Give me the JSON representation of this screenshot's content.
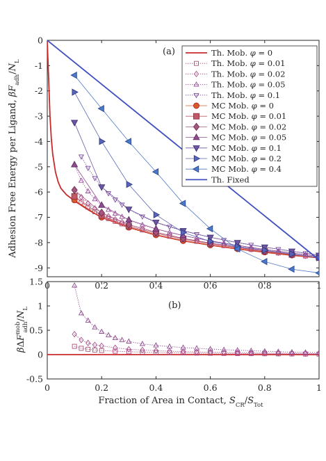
{
  "chart_data": [
    {
      "type": "line",
      "panel": "(a)",
      "ylabel": "Adhesion Free Energy per Ligand, βF_adh/N_L",
      "xlabel": "",
      "xlim": [
        0,
        1
      ],
      "ylim": [
        -9.35,
        0
      ],
      "xticks": [
        "0",
        "0.2",
        "0.4",
        "0.6",
        "0.8",
        "1"
      ],
      "yticks": [
        "0",
        "-1",
        "-2",
        "-3",
        "-4",
        "-5",
        "-6",
        "-7",
        "-8",
        "-9"
      ],
      "legend_position": "top-right",
      "legend": [
        "Th. Mob. φ = 0",
        "Th. Mob. φ = 0.01",
        "Th. Mob. φ = 0.02",
        "Th. Mob. φ = 0.05",
        "Th. Mob. φ = 0.1",
        "MC Mob. φ = 0",
        "MC Mob. φ = 0.01",
        "MC Mob. φ = 0.02",
        "MC Mob. φ = 0.05",
        "MC Mob. φ = 0.1",
        "MC Mob. φ = 0.2",
        "MC Mob. φ = 0.4",
        "Th. Fixed"
      ],
      "series": [
        {
          "name": "Th. Mob. φ = 0",
          "kind": "line",
          "color": "#c8292b",
          "x": [
            0.0,
            0.005,
            0.01,
            0.015,
            0.02,
            0.03,
            0.04,
            0.05,
            0.07,
            0.1,
            0.15,
            0.2,
            0.3,
            0.4,
            0.5,
            0.6,
            0.7,
            0.8,
            0.9,
            1.0
          ],
          "y": [
            -0.05,
            -1.5,
            -3.0,
            -3.9,
            -4.5,
            -5.2,
            -5.6,
            -5.85,
            -6.1,
            -6.35,
            -6.7,
            -7.0,
            -7.4,
            -7.7,
            -7.93,
            -8.1,
            -8.25,
            -8.38,
            -8.5,
            -8.6
          ]
        },
        {
          "name": "Th. Mob. φ = 0.01",
          "kind": "dotted",
          "marker": "square",
          "color": "#b04a7a",
          "x": [
            0.1,
            0.125,
            0.15,
            0.175,
            0.2,
            0.225,
            0.25,
            0.275,
            0.3,
            0.35,
            0.4,
            0.45,
            0.5,
            0.55,
            0.6,
            0.65,
            0.7,
            0.75,
            0.8,
            0.85,
            0.9,
            0.95,
            1.0
          ],
          "y": [
            -6.17,
            -6.4,
            -6.6,
            -6.78,
            -6.93,
            -7.05,
            -7.16,
            -7.26,
            -7.35,
            -7.5,
            -7.63,
            -7.75,
            -7.86,
            -7.95,
            -8.04,
            -8.12,
            -8.2,
            -8.27,
            -8.34,
            -8.41,
            -8.47,
            -8.53,
            -8.59
          ]
        },
        {
          "name": "Th. Mob. φ = 0.02",
          "kind": "dotted",
          "marker": "diamond",
          "color": "#a64d8c",
          "x": [
            0.1,
            0.125,
            0.15,
            0.175,
            0.2,
            0.225,
            0.25,
            0.275,
            0.3,
            0.35,
            0.4,
            0.45,
            0.5,
            0.55,
            0.6,
            0.65,
            0.7,
            0.75,
            0.8,
            0.85,
            0.9,
            0.95,
            1.0
          ],
          "y": [
            -5.92,
            -6.2,
            -6.45,
            -6.65,
            -6.82,
            -6.96,
            -7.08,
            -7.19,
            -7.29,
            -7.45,
            -7.59,
            -7.72,
            -7.83,
            -7.93,
            -8.02,
            -8.1,
            -8.18,
            -8.26,
            -8.33,
            -8.4,
            -8.46,
            -8.52,
            -8.58
          ]
        },
        {
          "name": "Th. Mob. φ = 0.05",
          "kind": "dotted",
          "marker": "triangle-up",
          "color": "#9a4d9a",
          "x": [
            0.1,
            0.125,
            0.15,
            0.175,
            0.2,
            0.225,
            0.25,
            0.275,
            0.3,
            0.35,
            0.4,
            0.45,
            0.5,
            0.55,
            0.6,
            0.65,
            0.7,
            0.75,
            0.8,
            0.85,
            0.9,
            0.95,
            1.0
          ],
          "y": [
            -4.92,
            -5.55,
            -5.97,
            -6.28,
            -6.52,
            -6.7,
            -6.85,
            -6.98,
            -7.1,
            -7.3,
            -7.46,
            -7.6,
            -7.72,
            -7.83,
            -7.93,
            -8.02,
            -8.11,
            -8.19,
            -8.27,
            -8.34,
            -8.41,
            -8.48,
            -8.55
          ]
        },
        {
          "name": "Th. Mob. φ = 0.1",
          "kind": "dotted",
          "marker": "triangle-down",
          "color": "#7a4a9e",
          "x": [
            0.125,
            0.15,
            0.175,
            0.2,
            0.225,
            0.25,
            0.275,
            0.3,
            0.35,
            0.4,
            0.45,
            0.5,
            0.55,
            0.6,
            0.65,
            0.7,
            0.75,
            0.8,
            0.85,
            0.9,
            0.95,
            1.0
          ],
          "y": [
            -4.6,
            -5.05,
            -5.45,
            -5.8,
            -6.05,
            -6.3,
            -6.5,
            -6.68,
            -6.97,
            -7.2,
            -7.38,
            -7.53,
            -7.67,
            -7.79,
            -7.9,
            -8.0,
            -8.09,
            -8.18,
            -8.26,
            -8.34,
            -8.42,
            -8.5
          ]
        },
        {
          "name": "MC Mob. φ = 0",
          "kind": "markers",
          "marker": "circle",
          "color": "#d9592e",
          "edge": "#b02a22",
          "x": [
            0.1,
            0.2,
            0.3,
            0.4,
            0.5,
            0.6,
            0.7,
            0.8,
            0.9,
            1.0
          ],
          "y": [
            -6.32,
            -7.0,
            -7.4,
            -7.7,
            -7.93,
            -8.1,
            -8.25,
            -8.38,
            -8.5,
            -8.6
          ]
        },
        {
          "name": "MC Mob. φ = 0.01",
          "kind": "markers",
          "marker": "square",
          "color": "#c05a66",
          "edge": "#8c2f44",
          "x": [
            0.1,
            0.2,
            0.3,
            0.4,
            0.5,
            0.6,
            0.7,
            0.8,
            0.9,
            1.0
          ],
          "y": [
            -6.17,
            -6.93,
            -7.35,
            -7.63,
            -7.86,
            -8.04,
            -8.2,
            -8.34,
            -8.47,
            -8.59
          ]
        },
        {
          "name": "MC Mob. φ = 0.02",
          "kind": "markers",
          "marker": "diamond",
          "color": "#a7577e",
          "edge": "#6e2f57",
          "x": [
            0.1,
            0.2,
            0.3,
            0.4,
            0.5,
            0.6,
            0.7,
            0.8,
            0.9,
            1.0
          ],
          "y": [
            -5.92,
            -6.82,
            -7.29,
            -7.59,
            -7.83,
            -8.02,
            -8.18,
            -8.33,
            -8.46,
            -8.58
          ]
        },
        {
          "name": "MC Mob. φ = 0.05",
          "kind": "markers",
          "marker": "triangle-up",
          "color": "#8f4c8f",
          "edge": "#5e2d66",
          "x": [
            0.1,
            0.2,
            0.3,
            0.4,
            0.5,
            0.6,
            0.7,
            0.8,
            0.9,
            1.0
          ],
          "y": [
            -4.92,
            -6.52,
            -7.1,
            -7.46,
            -7.72,
            -7.93,
            -8.11,
            -8.27,
            -8.41,
            -8.55
          ]
        },
        {
          "name": "MC Mob. φ = 0.1",
          "kind": "markers",
          "marker": "triangle-down",
          "color": "#6e56a0",
          "edge": "#3f3077",
          "x": [
            0.1,
            0.2,
            0.3,
            0.4,
            0.5,
            0.6,
            0.7,
            0.8,
            0.9,
            1.0
          ],
          "y": [
            -3.25,
            -5.8,
            -6.68,
            -7.2,
            -7.53,
            -7.79,
            -8.0,
            -8.18,
            -8.34,
            -8.5
          ]
        },
        {
          "name": "MC Mob. φ = 0.2",
          "kind": "markers",
          "marker": "triangle-right",
          "color": "#5a64b8",
          "edge": "#323b86",
          "x": [
            0.1,
            0.2,
            0.3,
            0.4,
            0.5,
            0.6,
            0.7,
            0.8,
            0.9,
            1.0
          ],
          "y": [
            -2.05,
            -4.0,
            -5.7,
            -6.9,
            -7.6,
            -7.95,
            -8.15,
            -8.3,
            -8.45,
            -8.6
          ]
        },
        {
          "name": "MC Mob. φ = 0.4",
          "kind": "markers",
          "marker": "triangle-left",
          "color": "#4e79c8",
          "edge": "#2b4a96",
          "x": [
            0.1,
            0.2,
            0.3,
            0.4,
            0.5,
            0.6,
            0.7,
            0.8,
            0.9,
            1.0
          ],
          "y": [
            -1.38,
            -2.7,
            -4.0,
            -5.2,
            -6.45,
            -7.45,
            -8.25,
            -8.75,
            -9.05,
            -9.2
          ]
        },
        {
          "name": "Th. Fixed",
          "kind": "line",
          "color": "#3f4fbf",
          "x": [
            0.0,
            1.0
          ],
          "y": [
            0.0,
            -8.68
          ]
        }
      ]
    },
    {
      "type": "line",
      "panel": "(b)",
      "ylabel": "βΔF_adh^mob/N_L",
      "xlabel": "Fraction of Area in Contact, S_CR/S_Tot",
      "xlim": [
        0,
        1
      ],
      "ylim": [
        -0.5,
        1.5
      ],
      "xticks": [
        "0",
        "0.2",
        "0.4",
        "0.6",
        "0.8",
        "1"
      ],
      "yticks": [
        "1.5",
        "1",
        "0.5",
        "0",
        "-0.5"
      ],
      "series": [
        {
          "name": "φ = 0",
          "kind": "line",
          "color": "#c8292b",
          "x": [
            0.0,
            1.0
          ],
          "y": [
            0.0,
            0.0
          ]
        },
        {
          "name": "φ = 0.01",
          "kind": "dotted",
          "marker": "square",
          "color": "#b04a7a",
          "x": [
            0.1,
            0.125,
            0.15,
            0.175,
            0.2,
            0.25,
            0.3,
            0.35,
            0.4,
            0.45,
            0.5,
            0.55,
            0.6,
            0.65,
            0.7,
            0.75,
            0.8,
            0.85,
            0.9,
            0.95,
            1.0
          ],
          "y": [
            0.17,
            0.13,
            0.11,
            0.095,
            0.085,
            0.07,
            0.06,
            0.052,
            0.045,
            0.04,
            0.035,
            0.031,
            0.028,
            0.025,
            0.022,
            0.02,
            0.018,
            0.016,
            0.014,
            0.012,
            0.01
          ]
        },
        {
          "name": "φ = 0.02",
          "kind": "dotted",
          "marker": "diamond",
          "color": "#a64d8c",
          "x": [
            0.1,
            0.125,
            0.15,
            0.175,
            0.2,
            0.25,
            0.3,
            0.35,
            0.4,
            0.45,
            0.5,
            0.55,
            0.6,
            0.65,
            0.7,
            0.75,
            0.8,
            0.85,
            0.9,
            0.95,
            1.0
          ],
          "y": [
            0.42,
            0.3,
            0.24,
            0.2,
            0.18,
            0.14,
            0.11,
            0.095,
            0.08,
            0.07,
            0.062,
            0.055,
            0.05,
            0.045,
            0.04,
            0.036,
            0.032,
            0.028,
            0.025,
            0.022,
            0.02
          ]
        },
        {
          "name": "φ = 0.05",
          "kind": "dotted",
          "marker": "triangle-up",
          "color": "#8f4c8f",
          "x": [
            0.1,
            0.125,
            0.15,
            0.175,
            0.2,
            0.225,
            0.25,
            0.275,
            0.3,
            0.35,
            0.4,
            0.45,
            0.5,
            0.55,
            0.6,
            0.65,
            0.7,
            0.75,
            0.8,
            0.85,
            0.9,
            0.95,
            1.0
          ],
          "y": [
            1.42,
            0.85,
            0.7,
            0.56,
            0.47,
            0.4,
            0.34,
            0.3,
            0.27,
            0.22,
            0.19,
            0.165,
            0.145,
            0.13,
            0.115,
            0.1,
            0.09,
            0.08,
            0.07,
            0.06,
            0.05,
            0.045,
            0.04
          ]
        }
      ]
    }
  ]
}
